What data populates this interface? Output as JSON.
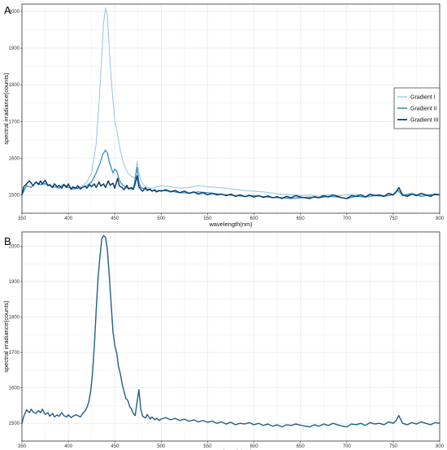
{
  "chart_data": [
    {
      "type": "line",
      "panel_label": "A",
      "xlabel": "wavelength(nm)",
      "ylabel": "spectral irradiance(counts)",
      "xlim": [
        350,
        800
      ],
      "ylim": [
        1450,
        2020
      ],
      "x_ticks": [
        "350",
        "400",
        "450",
        "500",
        "550",
        "600",
        "650",
        "700",
        "750",
        "800"
      ],
      "y_ticks": [
        "1500",
        "1600",
        "1700",
        "1800",
        "1900",
        "2000"
      ],
      "grid": true,
      "legend_position": "right",
      "series": [
        {
          "name": "Gradient I",
          "color": "#9ecae1",
          "x": [
            350,
            355,
            360,
            365,
            370,
            375,
            380,
            385,
            390,
            395,
            400,
            405,
            410,
            415,
            420,
            425,
            430,
            433,
            436,
            438,
            440,
            442,
            444,
            446,
            448,
            450,
            452,
            454,
            456,
            458,
            460,
            462,
            464,
            466,
            468,
            470,
            472,
            474,
            476,
            478,
            480,
            485,
            490,
            495,
            500,
            510,
            520,
            530,
            540,
            550,
            560,
            570,
            580,
            590,
            600,
            610,
            620,
            630,
            640,
            650,
            660,
            670,
            680,
            690,
            700,
            710,
            720,
            730,
            740,
            750,
            755,
            760,
            770,
            780,
            790,
            800
          ],
          "y": [
            1500,
            1525,
            1520,
            1535,
            1528,
            1532,
            1525,
            1522,
            1520,
            1530,
            1522,
            1518,
            1520,
            1525,
            1535,
            1560,
            1640,
            1750,
            1880,
            1970,
            2010,
            1990,
            1900,
            1820,
            1760,
            1700,
            1680,
            1650,
            1620,
            1600,
            1580,
            1570,
            1560,
            1555,
            1550,
            1548,
            1545,
            1590,
            1560,
            1540,
            1530,
            1520,
            1518,
            1522,
            1525,
            1522,
            1518,
            1520,
            1525,
            1522,
            1520,
            1518,
            1515,
            1512,
            1510,
            1508,
            1505,
            1502,
            1500,
            1498,
            1500,
            1496,
            1500,
            1498,
            1500,
            1502,
            1496,
            1500,
            1498,
            1502,
            1515,
            1500,
            1505,
            1498,
            1502,
            1500
          ]
        },
        {
          "name": "Gradient II",
          "color": "#3a8fc4",
          "x": [
            350,
            355,
            360,
            365,
            370,
            375,
            380,
            385,
            390,
            395,
            400,
            405,
            410,
            415,
            420,
            425,
            430,
            434,
            437,
            440,
            442,
            444,
            446,
            448,
            450,
            452,
            454,
            456,
            458,
            460,
            462,
            465,
            470,
            474,
            476,
            478,
            480,
            485,
            490,
            495,
            500,
            510,
            520,
            530,
            540,
            550,
            560,
            570,
            580,
            590,
            600,
            610,
            620,
            630,
            640,
            650,
            660,
            670,
            680,
            690,
            700,
            710,
            720,
            730,
            740,
            750,
            755,
            760,
            770,
            780,
            790,
            800
          ],
          "y": [
            1500,
            1525,
            1520,
            1535,
            1528,
            1530,
            1525,
            1522,
            1518,
            1528,
            1520,
            1516,
            1518,
            1520,
            1525,
            1535,
            1560,
            1585,
            1610,
            1622,
            1615,
            1590,
            1575,
            1560,
            1570,
            1565,
            1548,
            1535,
            1528,
            1525,
            1520,
            1518,
            1515,
            1575,
            1535,
            1520,
            1518,
            1515,
            1512,
            1510,
            1512,
            1510,
            1506,
            1505,
            1508,
            1506,
            1503,
            1500,
            1498,
            1496,
            1498,
            1495,
            1493,
            1492,
            1490,
            1492,
            1494,
            1492,
            1496,
            1494,
            1490,
            1496,
            1494,
            1498,
            1496,
            1500,
            1512,
            1498,
            1502,
            1496,
            1500,
            1500
          ]
        },
        {
          "name": "Gradient III",
          "color": "#0b3f6b",
          "x": [
            350,
            352,
            355,
            358,
            360,
            362,
            365,
            368,
            370,
            372,
            375,
            378,
            380,
            383,
            385,
            388,
            390,
            393,
            395,
            398,
            400,
            403,
            405,
            408,
            410,
            413,
            415,
            418,
            420,
            423,
            425,
            428,
            430,
            433,
            435,
            438,
            440,
            443,
            445,
            448,
            450,
            453,
            455,
            458,
            460,
            463,
            465,
            468,
            470,
            472,
            474,
            476,
            478,
            480,
            483,
            485,
            488,
            490,
            493,
            495,
            498,
            500,
            505,
            510,
            515,
            520,
            525,
            530,
            535,
            540,
            545,
            550,
            555,
            560,
            565,
            570,
            575,
            580,
            585,
            590,
            595,
            600,
            605,
            610,
            615,
            620,
            625,
            630,
            635,
            640,
            645,
            650,
            655,
            660,
            665,
            670,
            675,
            680,
            685,
            690,
            695,
            700,
            705,
            710,
            715,
            720,
            725,
            730,
            735,
            740,
            745,
            750,
            753,
            756,
            760,
            765,
            770,
            775,
            780,
            785,
            790,
            795,
            800
          ],
          "y": [
            1500,
            1522,
            1530,
            1538,
            1532,
            1525,
            1535,
            1528,
            1538,
            1530,
            1540,
            1525,
            1528,
            1520,
            1530,
            1522,
            1526,
            1518,
            1528,
            1520,
            1530,
            1515,
            1522,
            1518,
            1525,
            1516,
            1520,
            1524,
            1518,
            1528,
            1522,
            1530,
            1520,
            1535,
            1524,
            1530,
            1520,
            1538,
            1526,
            1532,
            1518,
            1545,
            1524,
            1520,
            1514,
            1526,
            1516,
            1520,
            1515,
            1530,
            1552,
            1522,
            1515,
            1510,
            1520,
            1512,
            1516,
            1510,
            1514,
            1508,
            1512,
            1510,
            1514,
            1508,
            1512,
            1506,
            1510,
            1504,
            1508,
            1502,
            1506,
            1500,
            1504,
            1500,
            1502,
            1498,
            1502,
            1496,
            1500,
            1495,
            1499,
            1494,
            1498,
            1493,
            1497,
            1492,
            1495,
            1490,
            1496,
            1492,
            1498,
            1494,
            1492,
            1490,
            1495,
            1492,
            1498,
            1494,
            1500,
            1496,
            1492,
            1490,
            1498,
            1496,
            1500,
            1494,
            1502,
            1498,
            1500,
            1496,
            1504,
            1500,
            1508,
            1520,
            1500,
            1496,
            1502,
            1498,
            1504,
            1500,
            1496,
            1502,
            1500
          ]
        }
      ]
    },
    {
      "type": "line",
      "panel_label": "B",
      "xlabel": "wavelength(nm)",
      "ylabel": "spectral irradiance(counts)",
      "xlim": [
        350,
        800
      ],
      "ylim": [
        1450,
        2040
      ],
      "x_ticks": [
        "350",
        "400",
        "450",
        "500",
        "550",
        "600",
        "650",
        "700",
        "750",
        "800"
      ],
      "y_ticks": [
        "1500",
        "1600",
        "1700",
        "1800",
        "1900",
        "2000"
      ],
      "grid": true,
      "series": [
        {
          "color": "#1f5f8b",
          "x": [
            350,
            352,
            355,
            358,
            360,
            362,
            365,
            368,
            370,
            372,
            375,
            378,
            380,
            383,
            385,
            388,
            390,
            393,
            395,
            398,
            400,
            403,
            405,
            408,
            410,
            413,
            415,
            418,
            420,
            422,
            424,
            426,
            428,
            430,
            432,
            434,
            436,
            438,
            440,
            442,
            444,
            446,
            448,
            450,
            452,
            454,
            456,
            458,
            460,
            462,
            464,
            466,
            468,
            470,
            472,
            474,
            476,
            478,
            480,
            483,
            485,
            488,
            490,
            493,
            495,
            498,
            500,
            505,
            510,
            515,
            520,
            525,
            530,
            535,
            540,
            545,
            550,
            555,
            560,
            565,
            570,
            575,
            580,
            585,
            590,
            595,
            600,
            605,
            610,
            615,
            620,
            625,
            630,
            635,
            640,
            645,
            650,
            655,
            660,
            665,
            670,
            675,
            680,
            685,
            690,
            695,
            700,
            705,
            710,
            715,
            720,
            725,
            730,
            735,
            740,
            745,
            750,
            753,
            756,
            760,
            765,
            770,
            775,
            780,
            785,
            790,
            795,
            800
          ],
          "y": [
            1500,
            1520,
            1538,
            1530,
            1540,
            1532,
            1528,
            1536,
            1530,
            1540,
            1525,
            1530,
            1520,
            1528,
            1518,
            1524,
            1520,
            1530,
            1522,
            1518,
            1524,
            1516,
            1520,
            1524,
            1522,
            1518,
            1526,
            1535,
            1545,
            1560,
            1590,
            1640,
            1720,
            1820,
            1910,
            1970,
            2020,
            2030,
            2025,
            1990,
            1920,
            1840,
            1760,
            1720,
            1700,
            1660,
            1640,
            1610,
            1590,
            1570,
            1565,
            1548,
            1540,
            1528,
            1522,
            1560,
            1595,
            1540,
            1520,
            1515,
            1525,
            1512,
            1518,
            1510,
            1514,
            1508,
            1512,
            1516,
            1510,
            1514,
            1508,
            1512,
            1506,
            1510,
            1504,
            1508,
            1503,
            1506,
            1500,
            1504,
            1498,
            1503,
            1496,
            1500,
            1498,
            1502,
            1496,
            1500,
            1494,
            1498,
            1492,
            1496,
            1490,
            1496,
            1494,
            1498,
            1495,
            1492,
            1490,
            1496,
            1492,
            1498,
            1494,
            1500,
            1496,
            1492,
            1490,
            1498,
            1496,
            1500,
            1494,
            1502,
            1498,
            1500,
            1496,
            1504,
            1500,
            1508,
            1522,
            1500,
            1496,
            1502,
            1498,
            1504,
            1500,
            1496,
            1502,
            1500
          ]
        }
      ]
    }
  ]
}
